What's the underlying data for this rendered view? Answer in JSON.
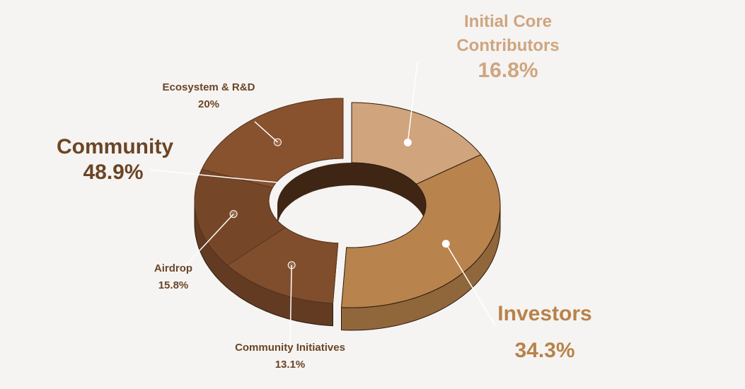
{
  "colors": {
    "background": "#f5f4f2",
    "initial_core": "#d0a47c",
    "investors": "#b8834c",
    "community": "#7a4a2a",
    "label_dark": "#6b4525",
    "label_light": "#cfa57f",
    "label_gold": "#b98249"
  },
  "chart_data": {
    "type": "pie",
    "variant": "3d-donut",
    "title": "",
    "groups": [
      {
        "name": "Community",
        "value": 48.9,
        "label": "48.9%",
        "components": [
          {
            "name": "Ecosystem & R&D",
            "value": 20,
            "label": "20%"
          },
          {
            "name": "Airdrop",
            "value": 15.8,
            "label": "15.8%"
          },
          {
            "name": "Community Initiatives",
            "value": 13.1,
            "label": "13.1%"
          }
        ]
      },
      {
        "name": "Initial Core Contributors",
        "value": 16.8,
        "label": "16.8%"
      },
      {
        "name": "Investors",
        "value": 34.3,
        "label": "34.3%"
      }
    ]
  },
  "labels": {
    "initial_core": {
      "line1": "Initial Core",
      "line2": "Contributors",
      "value": "16.8%"
    },
    "investors": {
      "name": "Investors",
      "value": "34.3%"
    },
    "community": {
      "name": "Community",
      "value": "48.9%"
    },
    "ecosystem": {
      "name": "Ecosystem & R&D",
      "value": "20%"
    },
    "airdrop": {
      "name": "Airdrop",
      "value": "15.8%"
    },
    "community_initiatives": {
      "name": "Community Initiatives",
      "value": "13.1%"
    }
  }
}
